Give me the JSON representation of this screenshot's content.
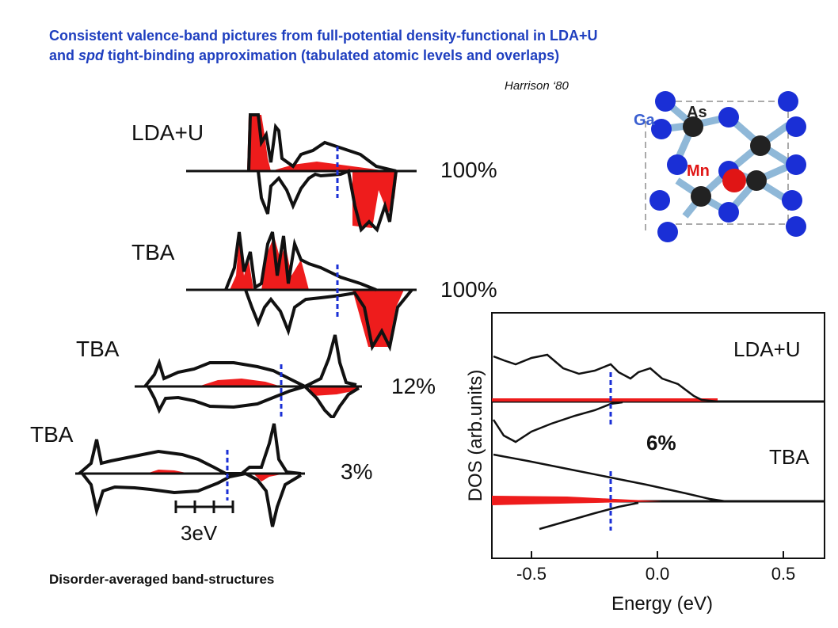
{
  "title": {
    "line1": "Consistent valence-band pictures from full-potential density-functional in LDA+U",
    "line2_pre": "and ",
    "line2_em": "spd",
    "line2_post": " tight-binding approximation (tabulated atomic levels and overlaps)"
  },
  "citation": "Harrison ‘80",
  "crystal": {
    "labels": [
      "As",
      "Ga",
      "Mn"
    ],
    "colors": {
      "ga": "#1a2fd6",
      "as": "#222222",
      "mn": "#e01515",
      "bond": "#8fb8d8"
    }
  },
  "left_panels": [
    {
      "label": "LDA+U",
      "percent": "100%"
    },
    {
      "label": "TBA",
      "percent": "100%"
    },
    {
      "label": "TBA",
      "percent": "12%"
    },
    {
      "label": "TBA",
      "percent": "3%"
    }
  ],
  "scale_bar": "3eV",
  "bottom_caption": "Disorder-averaged band-structures",
  "right_plot": {
    "ylabel": "DOS (arb.units)",
    "xlabel": "Energy (eV)",
    "xticks": [
      "-0.5",
      "0.0",
      "0.5"
    ],
    "panel_labels": [
      "LDA+U",
      "TBA"
    ],
    "percent": "6%",
    "fermi_energy": -0.2
  },
  "colors": {
    "title": "#1f3fbf",
    "minority_fill": "#ee1c1c",
    "fermi_line": "#1a2fd6"
  }
}
